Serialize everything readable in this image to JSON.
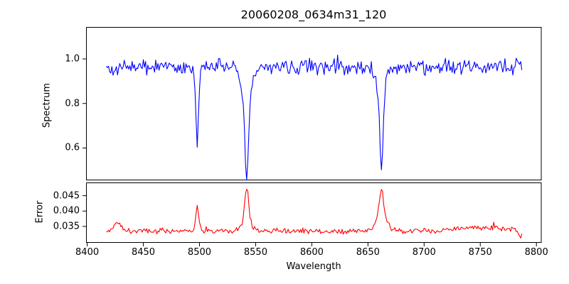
{
  "figure": {
    "title": "20060208_0634m31_120",
    "background_color": "#ffffff",
    "spine_color": "#000000"
  },
  "chart_data": {
    "type": "line",
    "title": "20060208_0634m31_120",
    "xlabel": "Wavelength",
    "xlim": [
      8399,
      8804
    ],
    "x_data_range": [
      8417,
      8787
    ],
    "x_step": 1.0,
    "seed": 42,
    "x_ticks": [
      8400,
      8450,
      8500,
      8550,
      8600,
      8650,
      8700,
      8750,
      8800
    ],
    "x_tick_labels": [
      "8400",
      "8450",
      "8500",
      "8550",
      "8600",
      "8650",
      "8700",
      "8750",
      "8800"
    ],
    "subplots": [
      {
        "name": "spectrum",
        "ylabel": "Spectrum",
        "line_color": "#0000ff",
        "ylim": [
          0.458,
          1.1435
        ],
        "y_ticks": [
          0.6,
          0.8,
          1.0
        ],
        "y_tick_labels": [
          "0.6",
          "0.8",
          "1.0"
        ],
        "continuum_level": 0.965,
        "noise_amplitude": 0.042,
        "spike_chance": 0.03,
        "spike_amplitude": 0.06,
        "clamp": [
          0.455,
          1.103
        ],
        "absorption_lines": [
          {
            "center": 8498,
            "min_flux": 0.6,
            "components": [
              {
                "depth": 0.3,
                "width": 1.0
              },
              {
                "depth": 0.06,
                "width": 3.0
              }
            ]
          },
          {
            "center": 8542,
            "min_flux": 0.46,
            "components": [
              {
                "depth": 0.33,
                "width": 1.4
              },
              {
                "depth": 0.175,
                "width": 4.5
              }
            ]
          },
          {
            "center": 8662,
            "min_flux": 0.49,
            "components": [
              {
                "depth": 0.33,
                "width": 1.3
              },
              {
                "depth": 0.14,
                "width": 3.8
              }
            ]
          }
        ]
      },
      {
        "name": "error",
        "ylabel": "Error",
        "line_color": "#ff0000",
        "ylim": [
          0.0299,
          0.0493
        ],
        "y_ticks": [
          0.035,
          0.04,
          0.045
        ],
        "y_tick_labels": [
          "0.035",
          "0.040",
          "0.045"
        ],
        "baseline_level": 0.0335,
        "noise_amplitude": 0.0011,
        "spike_chance": 0.02,
        "spike_amplitude": 0.0015,
        "clamp": [
          0.0312,
          0.0471
        ],
        "peaks": [
          {
            "center": 8498,
            "amplitude": 0.0085,
            "width": 1.3
          },
          {
            "center": 8542,
            "amplitude": 0.0115,
            "width": 1.7
          },
          {
            "center": 8542,
            "amplitude": 0.003,
            "width": 5.0
          },
          {
            "center": 8662,
            "amplitude": 0.01,
            "width": 2.2
          },
          {
            "center": 8662,
            "amplitude": 0.003,
            "width": 6.0
          },
          {
            "center": 8427,
            "amplitude": 0.0025,
            "width": 3.0
          },
          {
            "center": 8750,
            "amplitude": 0.0012,
            "width": 18.0
          },
          {
            "center": 8786,
            "amplitude": -0.002,
            "width": 1.5
          }
        ]
      }
    ]
  }
}
